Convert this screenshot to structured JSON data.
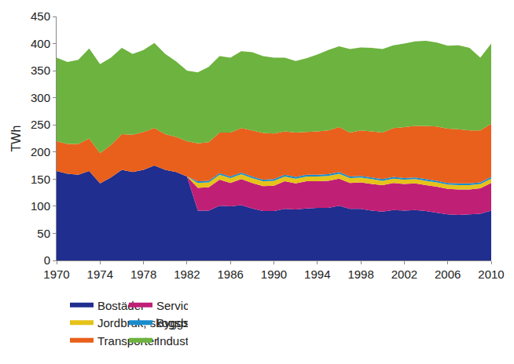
{
  "chart_data": {
    "type": "area",
    "stacked": true,
    "y_label": "TWh",
    "x": [
      1970,
      1971,
      1972,
      1973,
      1974,
      1975,
      1976,
      1977,
      1978,
      1979,
      1980,
      1981,
      1982,
      1983,
      1984,
      1985,
      1986,
      1987,
      1988,
      1989,
      1990,
      1991,
      1992,
      1993,
      1994,
      1995,
      1996,
      1997,
      1998,
      1999,
      2000,
      2001,
      2002,
      2003,
      2004,
      2005,
      2006,
      2007,
      2008,
      2009,
      2010
    ],
    "xlim": [
      1970,
      2010
    ],
    "xticks": [
      1970,
      1974,
      1978,
      1982,
      1986,
      1990,
      1994,
      1998,
      2002,
      2006,
      2010
    ],
    "ylim": [
      0,
      450
    ],
    "yticks": [
      0,
      50,
      100,
      150,
      200,
      250,
      300,
      350,
      400,
      450
    ],
    "grid": false,
    "legend": "bottom",
    "series": [
      {
        "name": "Bostäder",
        "color": "#1f2e8f",
        "values": [
          165,
          160,
          158,
          165,
          142,
          153,
          167,
          163,
          167,
          175,
          167,
          163,
          155,
          92,
          92,
          101,
          100,
          102,
          96,
          91,
          91,
          95,
          94,
          96,
          97,
          97,
          101,
          95,
          95,
          92,
          90,
          93,
          92,
          93,
          91,
          88,
          85,
          84,
          85,
          86,
          92
        ]
      },
      {
        "name": "Service",
        "color": "#c01f76",
        "values": [
          0,
          0,
          0,
          0,
          0,
          0,
          0,
          0,
          0,
          0,
          0,
          0,
          0,
          42,
          43,
          48,
          43,
          48,
          47,
          46,
          47,
          51,
          48,
          50,
          49,
          50,
          50,
          48,
          49,
          49,
          49,
          50,
          49,
          49,
          48,
          48,
          47,
          47,
          46,
          47,
          51
        ]
      },
      {
        "name": "Jordbruk, skogsbruk och fiske",
        "color": "#e6c21a",
        "values": [
          0,
          0,
          0,
          0,
          0,
          0,
          0,
          0,
          0,
          0,
          0,
          0,
          0,
          9,
          9,
          9,
          9,
          9,
          9,
          9,
          9,
          9,
          9,
          9,
          9,
          9,
          9,
          9,
          9,
          9,
          8,
          8,
          8,
          8,
          8,
          8,
          8,
          8,
          8,
          8,
          8
        ]
      },
      {
        "name": "Byggsektorn",
        "color": "#1a8ccc",
        "values": [
          0,
          0,
          0,
          0,
          0,
          0,
          0,
          0,
          0,
          0,
          0,
          0,
          0,
          3,
          3,
          3,
          3,
          3,
          3,
          3,
          3,
          3,
          3,
          3,
          3,
          3,
          3,
          3,
          3,
          3,
          3,
          3,
          3,
          3,
          3,
          3,
          3,
          3,
          3,
          3,
          3
        ]
      },
      {
        "name": "Transporter",
        "color": "#e8601c",
        "values": [
          55,
          55,
          57,
          60,
          56,
          60,
          66,
          69,
          70,
          69,
          66,
          65,
          65,
          70,
          71,
          75,
          81,
          82,
          85,
          86,
          84,
          80,
          82,
          79,
          80,
          81,
          83,
          81,
          84,
          85,
          86,
          90,
          94,
          95,
          98,
          100,
          100,
          100,
          98,
          96,
          98
        ]
      },
      {
        "name": "Industri",
        "color": "#6db33f",
        "values": [
          154,
          151,
          155,
          166,
          164,
          161,
          159,
          149,
          151,
          157,
          148,
          139,
          130,
          131,
          139,
          141,
          138,
          142,
          144,
          142,
          140,
          136,
          132,
          136,
          142,
          148,
          149,
          154,
          153,
          154,
          154,
          153,
          154,
          156,
          157,
          155,
          153,
          155,
          152,
          134,
          148
        ]
      }
    ]
  }
}
